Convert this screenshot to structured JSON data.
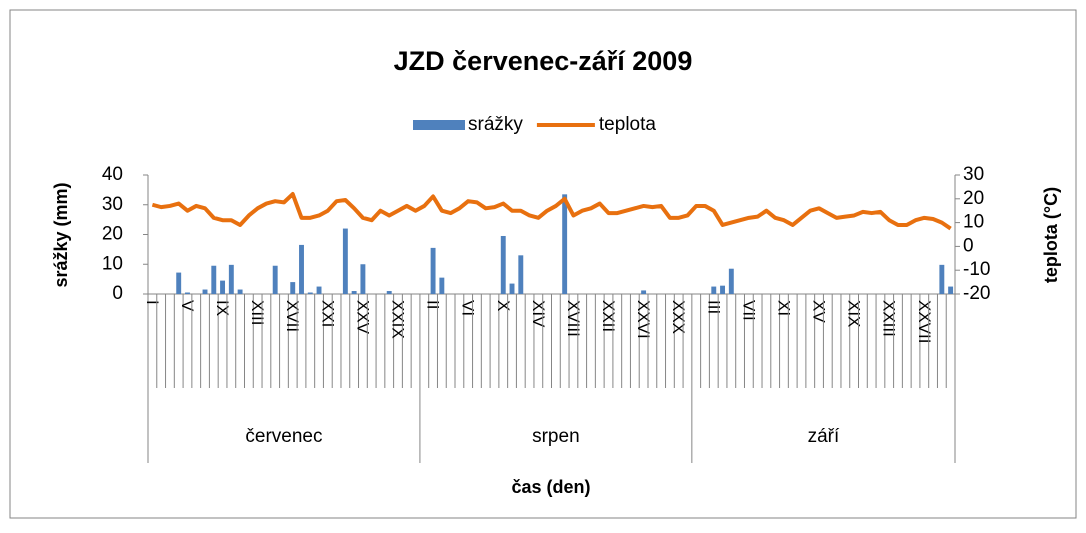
{
  "chart_data": {
    "type": "combo",
    "title": "JZD červenec-září 2009",
    "y_label": "srážky (mm)",
    "y2_label": "teplota (°C)",
    "x_label": "čas (den)",
    "category_groups": [
      {
        "name": "červenec",
        "categories": [
          "I",
          null,
          null,
          null,
          "V",
          null,
          null,
          null,
          "IX",
          null,
          null,
          null,
          "XIII",
          null,
          null,
          null,
          "XVII",
          null,
          null,
          null,
          "XXI",
          null,
          null,
          null,
          "XXV",
          null,
          null,
          null,
          "XXIX",
          null,
          null
        ]
      },
      {
        "name": "srpen",
        "categories": [
          null,
          "II",
          null,
          null,
          null,
          "VI",
          null,
          null,
          null,
          "X",
          null,
          null,
          null,
          "XIV",
          null,
          null,
          null,
          "XVIII",
          null,
          null,
          null,
          "XXII",
          null,
          null,
          null,
          "XXVI",
          null,
          null,
          null,
          "XXX",
          null
        ]
      },
      {
        "name": "září",
        "categories": [
          null,
          null,
          "III",
          null,
          null,
          null,
          "VII",
          null,
          null,
          null,
          "XI",
          null,
          null,
          null,
          "XV",
          null,
          null,
          null,
          "XIX",
          null,
          null,
          null,
          "XXIII",
          null,
          null,
          null,
          "XXVII",
          null,
          null,
          null
        ]
      }
    ],
    "series": [
      {
        "name": "srážky",
        "type": "bar",
        "color": "#4f81bd",
        "values": [
          0,
          0,
          0,
          7.2,
          0.5,
          0,
          1.5,
          9.5,
          4.5,
          9.8,
          1.5,
          0,
          0,
          0,
          9.5,
          0,
          4,
          16.5,
          0.5,
          2.5,
          0,
          0,
          22,
          1,
          10,
          0,
          0,
          1,
          0,
          0,
          0,
          0,
          15.5,
          5.5,
          0,
          0,
          0,
          0,
          0,
          0,
          19.5,
          3.5,
          13,
          0,
          0,
          0,
          0,
          33.5,
          0,
          0,
          0,
          0,
          0,
          0,
          0,
          0,
          1.2,
          0,
          0,
          0,
          0,
          0,
          0,
          0,
          2.5,
          2.8,
          8.5,
          0,
          0,
          0,
          0,
          0,
          0,
          0,
          0,
          0,
          0,
          0,
          0,
          0,
          0,
          0,
          0,
          0,
          0,
          0,
          0,
          0,
          0,
          0,
          9.8,
          2.5
        ]
      },
      {
        "name": "teplota",
        "type": "line",
        "axis": "y2",
        "color": "#e8700f",
        "values": [
          17.5,
          16.5,
          17,
          18,
          15,
          17,
          16,
          12,
          11,
          11,
          9,
          13,
          16,
          18,
          19,
          18.5,
          22,
          12,
          12,
          13,
          15,
          19,
          19.5,
          16,
          12,
          11,
          15,
          13,
          15,
          17,
          15,
          17,
          21,
          15,
          14,
          16,
          19,
          18.5,
          16,
          16.5,
          18,
          15,
          15,
          13,
          12,
          15,
          17,
          20,
          13,
          15,
          16,
          18,
          14,
          14,
          15,
          16,
          17,
          16.5,
          17,
          12,
          12,
          13,
          17,
          17,
          15,
          9,
          10,
          11,
          12,
          12.5,
          15,
          12,
          11,
          9,
          12,
          15,
          16,
          14,
          12,
          12.5,
          13,
          14.5,
          14,
          14.5,
          11,
          9,
          9,
          11,
          12,
          11.5,
          10,
          7.5
        ]
      }
    ],
    "ylim": [
      0,
      40
    ],
    "yticks": [
      0,
      10,
      20,
      30,
      40
    ],
    "y2lim": [
      -20,
      30
    ],
    "y2ticks": [
      -20,
      -10,
      0,
      10,
      20,
      30
    ],
    "legend": "top",
    "grid": false
  }
}
